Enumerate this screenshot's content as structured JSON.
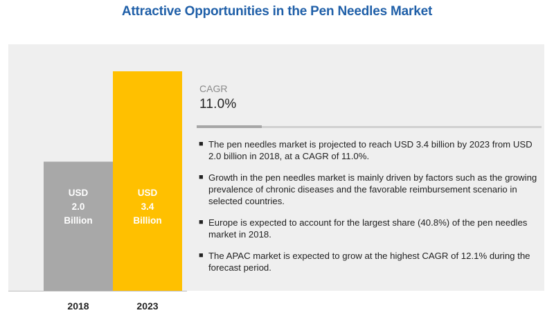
{
  "title": "Attractive Opportunities in the Pen Needles Market",
  "colors": {
    "bar_2018": "#a8a8a8",
    "bar_2023": "#ffc000",
    "panel_background": "#efefef",
    "title": "#1f5fa8"
  },
  "chart_data": {
    "type": "bar",
    "categories": [
      "2018",
      "2023"
    ],
    "values": [
      2.0,
      3.4
    ],
    "value_unit": "USD Billion",
    "data_labels": [
      [
        "USD",
        "2.0",
        "Billion"
      ],
      [
        "USD",
        "3.4",
        "Billion"
      ]
    ],
    "title": "",
    "xlabel": "",
    "ylabel": "",
    "ylim": [
      0,
      3.4
    ]
  },
  "cagr": {
    "label": "CAGR",
    "value": "11.0%"
  },
  "bullets": [
    "The pen needles market is projected to reach USD 3.4 billion by 2023 from USD 2.0 billion in 2018, at a CAGR of 11.0%.",
    "Growth in the pen needles market is mainly driven by factors such as the growing prevalence of chronic diseases and the favorable reimbursement scenario in selected countries.",
    "Europe is expected to account for the largest share (40.8%) of the pen needles market in 2018.",
    "The APAC market is expected to grow at the highest CAGR of 12.1% during the forecast period."
  ]
}
